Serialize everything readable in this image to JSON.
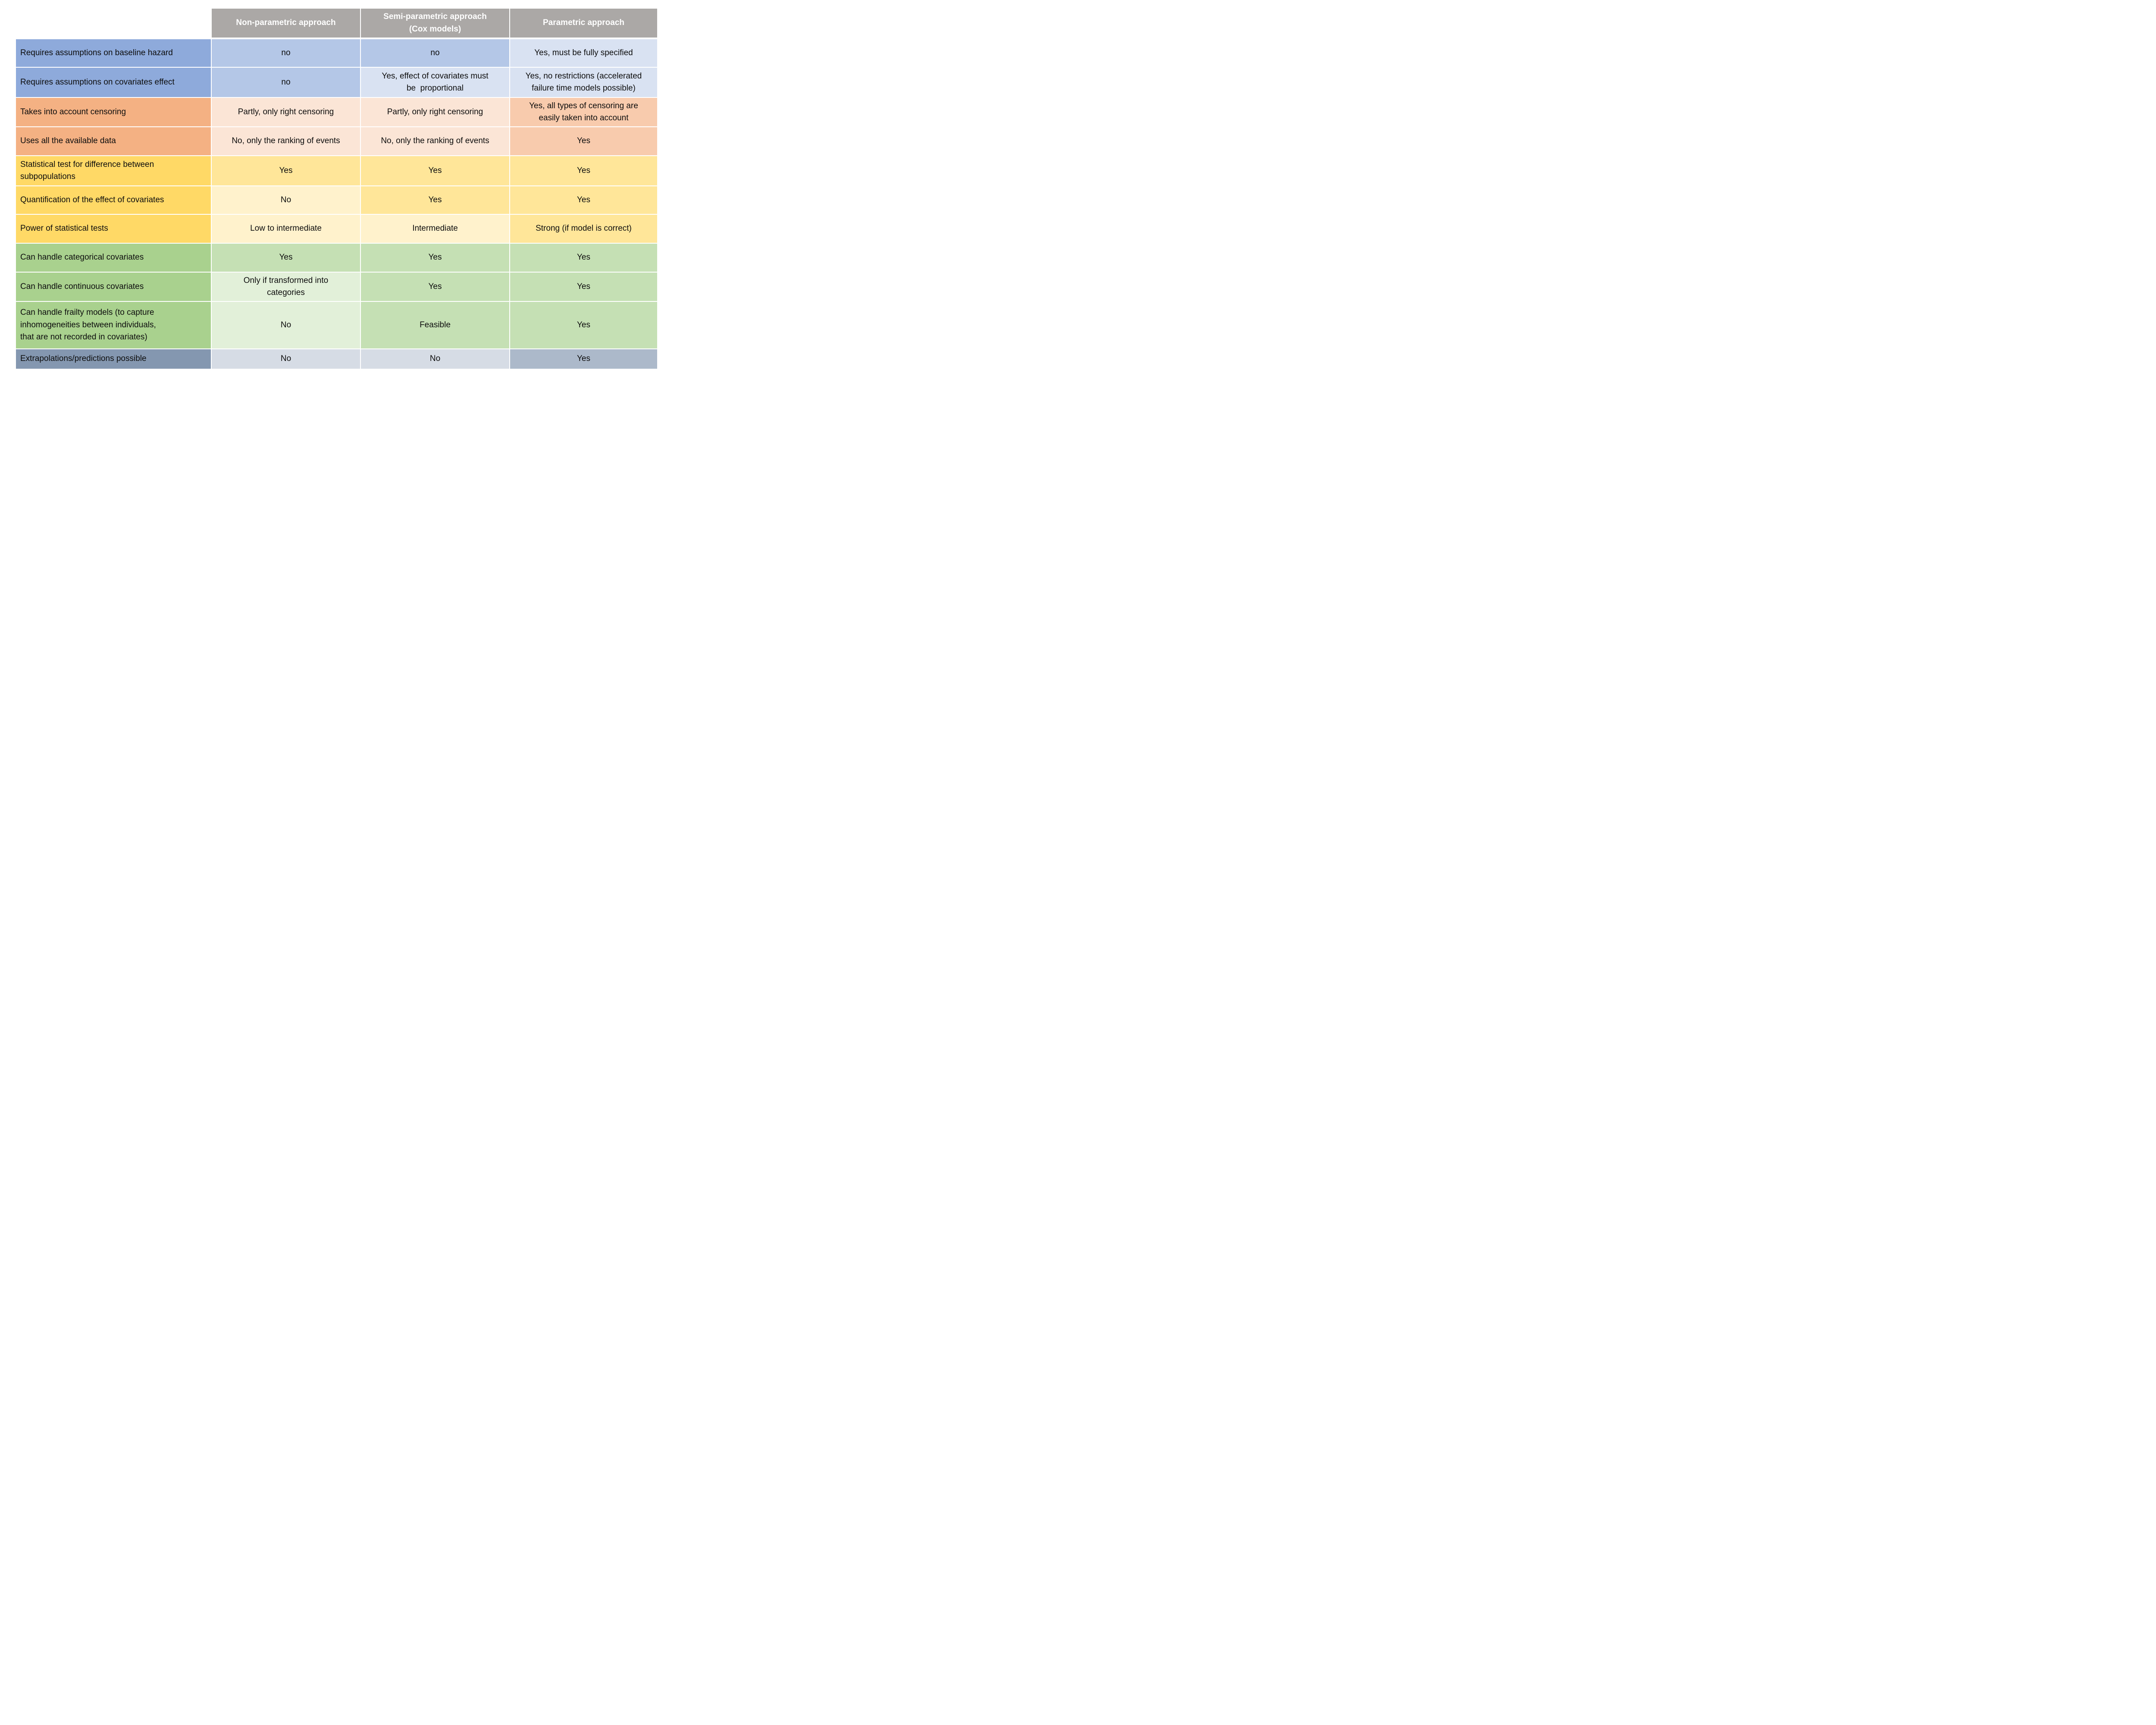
{
  "table": {
    "corner": "",
    "columns": [
      "Non-parametric approach",
      "Semi-parametric approach\n(Cox models)",
      "Parametric approach"
    ],
    "rows": [
      {
        "label": "Requires assumptions on baseline hazard",
        "cells": [
          "no",
          "no",
          "Yes, must be fully specified"
        ],
        "tones": [
          "mid",
          "mid",
          "light"
        ],
        "section": "blue"
      },
      {
        "label": "Requires assumptions on covariates effect",
        "cells": [
          "no",
          "Yes, effect of covariates must\nbe  proportional",
          "Yes, no restrictions (accelerated\nfailure time models possible)"
        ],
        "tones": [
          "mid",
          "light",
          "light"
        ],
        "section": "blue"
      },
      {
        "label": "Takes into account censoring",
        "cells": [
          "Partly, only right censoring",
          "Partly, only right censoring",
          "Yes, all types of censoring are\neasily taken into account"
        ],
        "tones": [
          "light",
          "light",
          "mid"
        ],
        "section": "orange"
      },
      {
        "label": "Uses all the available data",
        "cells": [
          "No, only the ranking of events",
          "No, only the ranking of events",
          "Yes"
        ],
        "tones": [
          "light",
          "light",
          "mid"
        ],
        "section": "orange"
      },
      {
        "label": "Statistical test for difference between\nsubpopulations",
        "cells": [
          "Yes",
          "Yes",
          "Yes"
        ],
        "tones": [
          "mid",
          "mid",
          "mid"
        ],
        "section": "yellow"
      },
      {
        "label": "Quantification of the effect of covariates",
        "cells": [
          "No",
          "Yes",
          "Yes"
        ],
        "tones": [
          "light",
          "mid",
          "mid"
        ],
        "section": "yellow"
      },
      {
        "label": "Power of statistical tests",
        "cells": [
          "Low to intermediate",
          "Intermediate",
          "Strong (if model is correct)"
        ],
        "tones": [
          "light",
          "light",
          "mid"
        ],
        "section": "yellow"
      },
      {
        "label": "Can handle categorical covariates",
        "cells": [
          "Yes",
          "Yes",
          "Yes"
        ],
        "tones": [
          "mid",
          "mid",
          "mid"
        ],
        "section": "green"
      },
      {
        "label": "Can handle continuous covariates",
        "cells": [
          "Only if transformed into\ncategories",
          "Yes",
          "Yes"
        ],
        "tones": [
          "light",
          "mid",
          "mid"
        ],
        "section": "green"
      },
      {
        "label": "Can handle frailty models (to capture\ninhomogeneities between individuals,\nthat are not recorded in covariates)",
        "cells": [
          "No",
          "Feasible",
          "Yes"
        ],
        "tones": [
          "light",
          "mid",
          "mid"
        ],
        "section": "green"
      },
      {
        "label": "Extrapolations/predictions possible",
        "cells": [
          "No",
          "No",
          "Yes"
        ],
        "tones": [
          "light",
          "light",
          "mid"
        ],
        "section": "slate"
      }
    ],
    "palette": {
      "header_bg": "#ABA8A6",
      "header_text": "#FFFFFF",
      "body_text": "#0D0D0D",
      "blue": {
        "label": "#8EAADB",
        "mid": "#B4C7E7",
        "light": "#D9E2F2"
      },
      "orange": {
        "label": "#F4B183",
        "mid": "#F8CBAD",
        "light": "#FBE5D6"
      },
      "yellow": {
        "label": "#FFD966",
        "mid": "#FFE699",
        "light": "#FFF2CC"
      },
      "green": {
        "label": "#A9D18E",
        "mid": "#C5E0B4",
        "light": "#E2F0D9"
      },
      "slate": {
        "label": "#8497B0",
        "mid": "#ACB9CA",
        "light": "#D6DCE5"
      }
    }
  }
}
